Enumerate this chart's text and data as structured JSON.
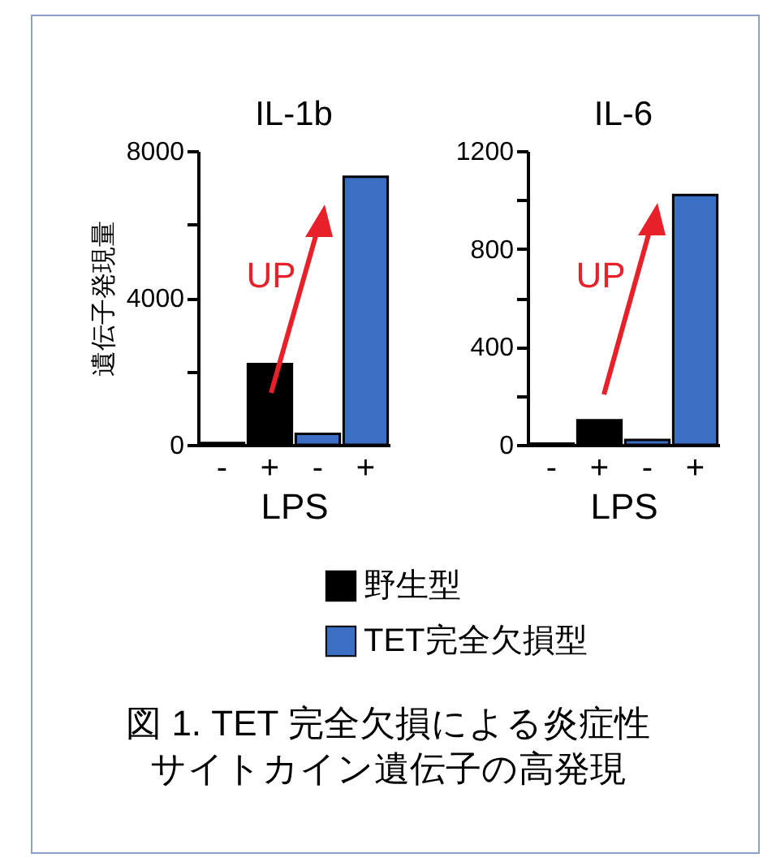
{
  "chart_data": [
    {
      "type": "bar",
      "title": "IL-1b",
      "ylabel": "遺伝子発現量",
      "xlabel": "LPS",
      "categories": [
        "-",
        "+",
        "-",
        "+"
      ],
      "series": [
        {
          "name": "野生型",
          "color": "#000000",
          "values": [
            50,
            2200,
            null,
            null
          ]
        },
        {
          "name": "TET完全欠損型",
          "color": "#3a6fc4",
          "values": [
            null,
            null,
            300,
            7300
          ]
        }
      ],
      "ylim": [
        0,
        8000
      ],
      "yticks": [
        0,
        {
          "value": 2000,
          "label": null
        },
        4000,
        {
          "value": 6000,
          "label": null
        },
        8000
      ],
      "legend": "bottom",
      "grid": false,
      "annotations": [
        "UP"
      ]
    },
    {
      "type": "bar",
      "title": "IL-6",
      "xlabel": "LPS",
      "categories": [
        "-",
        "+",
        "-",
        "+"
      ],
      "series": [
        {
          "color": "#000000",
          "values": [
            5,
            100,
            null,
            null
          ]
        },
        {
          "color": "#3a6fc4",
          "values": [
            null,
            null,
            20,
            1020
          ]
        }
      ],
      "ylim": [
        0,
        1200
      ],
      "yticks": [
        0,
        {
          "value": 200,
          "label": null
        },
        400,
        {
          "value": 600,
          "label": null
        },
        800,
        {
          "value": 1000,
          "label": null
        },
        1200
      ],
      "grid": false,
      "annotations": [
        "UP",
        "図 1. TET 完全欠損による炎症性サイトカイン遺伝子の高発現"
      ]
    }
  ]
}
